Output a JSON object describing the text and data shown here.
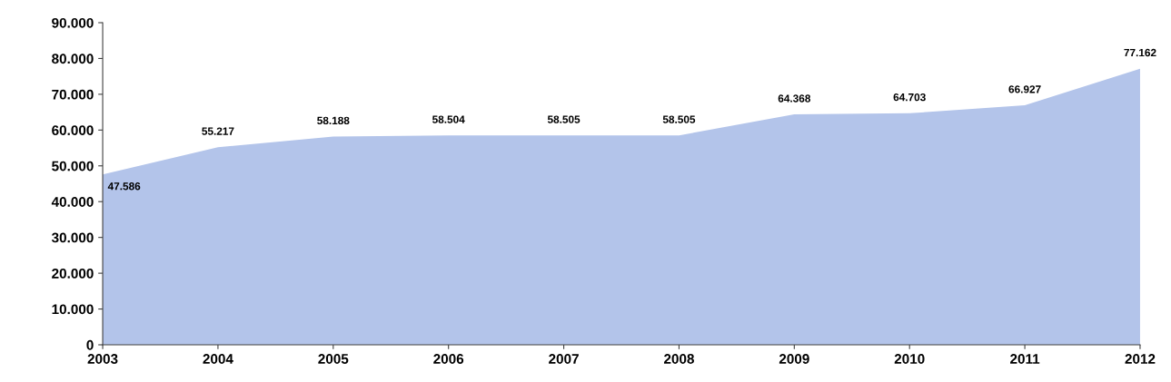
{
  "chart_data": {
    "type": "area",
    "categories": [
      "2003",
      "2004",
      "2005",
      "2006",
      "2007",
      "2008",
      "2009",
      "2010",
      "2011",
      "2012"
    ],
    "series": [
      {
        "color": "#b3c4ea",
        "values": [
          47586,
          55217,
          58188,
          58504,
          58505,
          58505,
          64368,
          64703,
          66927,
          77162
        ],
        "value_labels": [
          "47.586",
          "55.217",
          "58.188",
          "58.504",
          "58.505",
          "58.505",
          "64.368",
          "64.703",
          "66.927",
          "77.162"
        ]
      }
    ],
    "ylim": [
      0,
      90000
    ],
    "yticks": [
      0,
      {
        "value": 10000,
        "label": "10.000"
      },
      {
        "value": 20000,
        "label": "20.000"
      },
      {
        "value": 30000,
        "label": "30.000"
      },
      {
        "value": 40000,
        "label": "40.000"
      },
      {
        "value": 50000,
        "label": "50.000"
      },
      {
        "value": 60000,
        "label": "60.000"
      },
      {
        "value": 70000,
        "label": "70.000"
      },
      {
        "value": 80000,
        "label": "80.000"
      },
      {
        "value": 90000,
        "label": "90.000"
      }
    ],
    "grid": false,
    "legend": false
  }
}
